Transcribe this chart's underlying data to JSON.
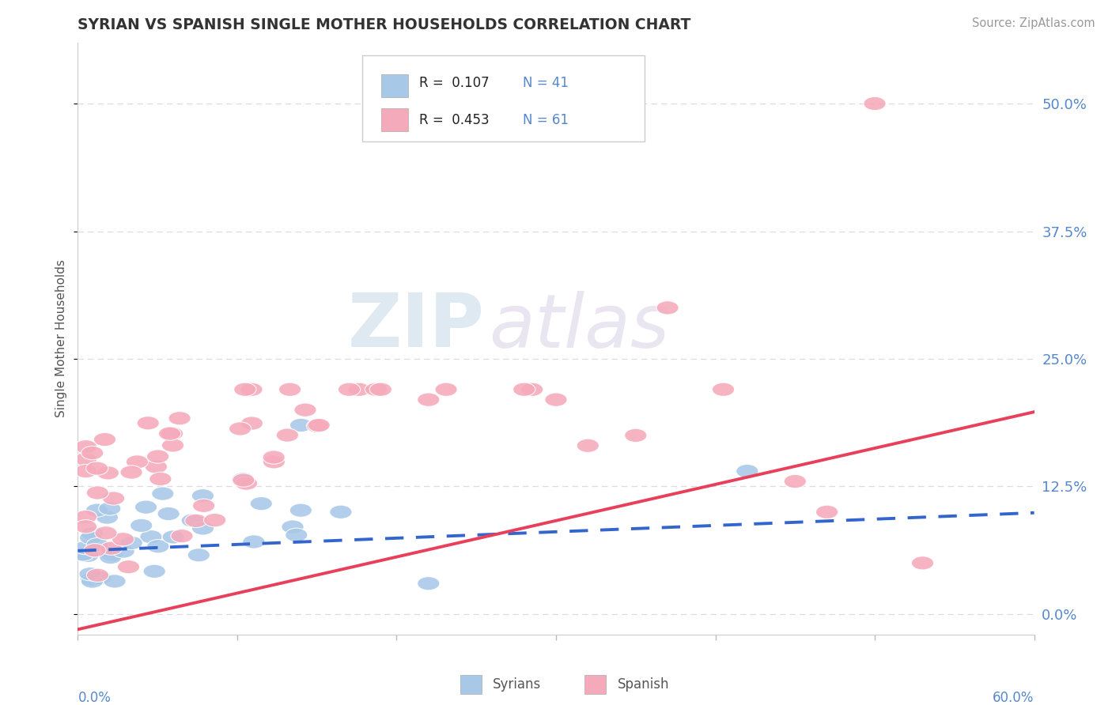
{
  "title": "SYRIAN VS SPANISH SINGLE MOTHER HOUSEHOLDS CORRELATION CHART",
  "source": "Source: ZipAtlas.com",
  "ylabel": "Single Mother Households",
  "ytick_labels": [
    "0.0%",
    "12.5%",
    "25.0%",
    "37.5%",
    "50.0%"
  ],
  "ytick_values": [
    0.0,
    0.125,
    0.25,
    0.375,
    0.5
  ],
  "xlim": [
    0.0,
    0.6
  ],
  "ylim": [
    -0.02,
    0.56
  ],
  "legend_r_syrian": "R =  0.107",
  "legend_n_syrian": "N = 41",
  "legend_r_spanish": "R =  0.453",
  "legend_n_spanish": "N = 61",
  "syrian_color": "#a8c8e8",
  "spanish_color": "#f5aabb",
  "syrian_line_color": "#3366cc",
  "spanish_line_color": "#e8405a",
  "watermark_zip": "ZIP",
  "watermark_atlas": "atlas",
  "watermark_color": "#ccdde8",
  "background_color": "#ffffff",
  "grid_color": "#dddddd",
  "border_color": "#cccccc",
  "ytick_color": "#5588cc",
  "xtick_label_color": "#5588cc",
  "title_color": "#333333",
  "source_color": "#999999",
  "syrian_line_intercept": 0.062,
  "syrian_line_slope": 0.062,
  "spanish_line_intercept": -0.015,
  "spanish_line_slope": 0.355
}
